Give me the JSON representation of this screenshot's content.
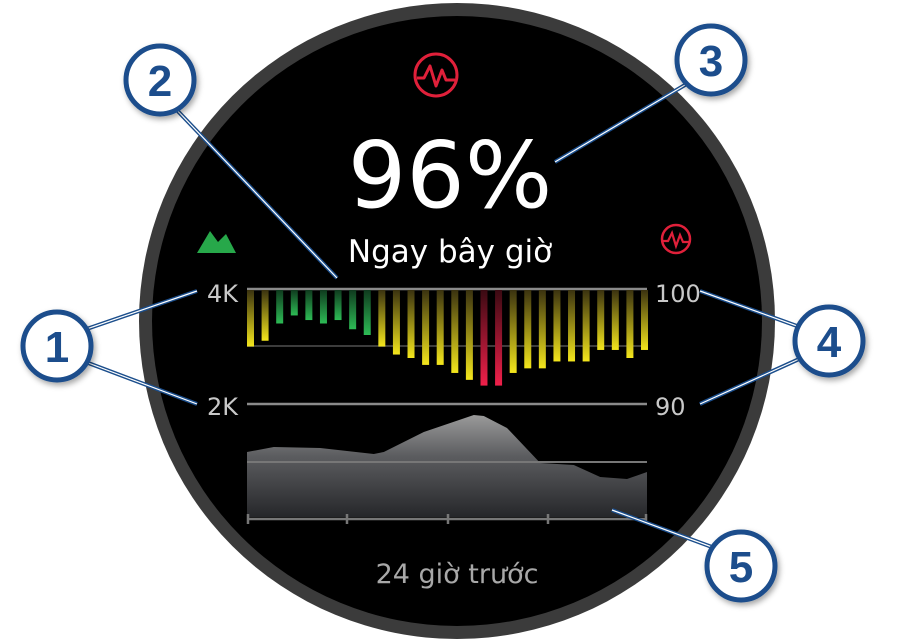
{
  "watch": {
    "value": "96%",
    "caption": "Ngay bây giờ",
    "footer": "24 giờ trước",
    "top_icon": "pulse-ox-icon",
    "right_icon": "pulse-ox-icon",
    "left_icon": "mountain-elevation-icon"
  },
  "axes": {
    "left_top": "4K",
    "left_bottom": "2K",
    "right_top": "100",
    "right_bottom": "90"
  },
  "callouts": [
    "1",
    "2",
    "3",
    "4",
    "5"
  ],
  "colors": {
    "callout_blue": "#1b4e8c",
    "pulse_red": "#e0203a",
    "green": "#22a84a",
    "yellow": "#f2e21a",
    "red": "#e8203e"
  },
  "chart_data": [
    {
      "type": "bar",
      "ylabel": "",
      "ylim": [
        90,
        100
      ],
      "values": [
        95.0,
        95.5,
        97.0,
        97.7,
        97.3,
        97.0,
        97.3,
        96.5,
        96.0,
        95.0,
        94.3,
        94.0,
        93.4,
        93.4,
        92.7,
        92.1,
        91.6,
        91.6,
        92.7,
        93.1,
        93.1,
        93.7,
        93.7,
        93.7,
        94.7,
        94.7,
        94.0,
        94.7
      ],
      "bar_colors": [
        "yellow",
        "yellow",
        "green",
        "green",
        "green",
        "green",
        "green",
        "green",
        "green",
        "yellow",
        "yellow",
        "yellow",
        "yellow",
        "yellow",
        "yellow",
        "yellow",
        "red",
        "red",
        "yellow",
        "yellow",
        "yellow",
        "yellow",
        "yellow",
        "yellow",
        "yellow",
        "yellow",
        "yellow",
        "yellow"
      ]
    },
    {
      "type": "area",
      "ylim": [
        0,
        4000
      ],
      "x_span": "24 giờ trước",
      "values": [
        1165,
        1252,
        1235,
        1130,
        1165,
        1513,
        1809,
        1791,
        1583,
        974,
        939,
        730,
        696,
        817
      ],
      "x": [
        0,
        0.067,
        0.183,
        0.317,
        0.342,
        0.442,
        0.567,
        0.592,
        0.65,
        0.733,
        0.817,
        0.883,
        0.95,
        1.0
      ]
    }
  ]
}
